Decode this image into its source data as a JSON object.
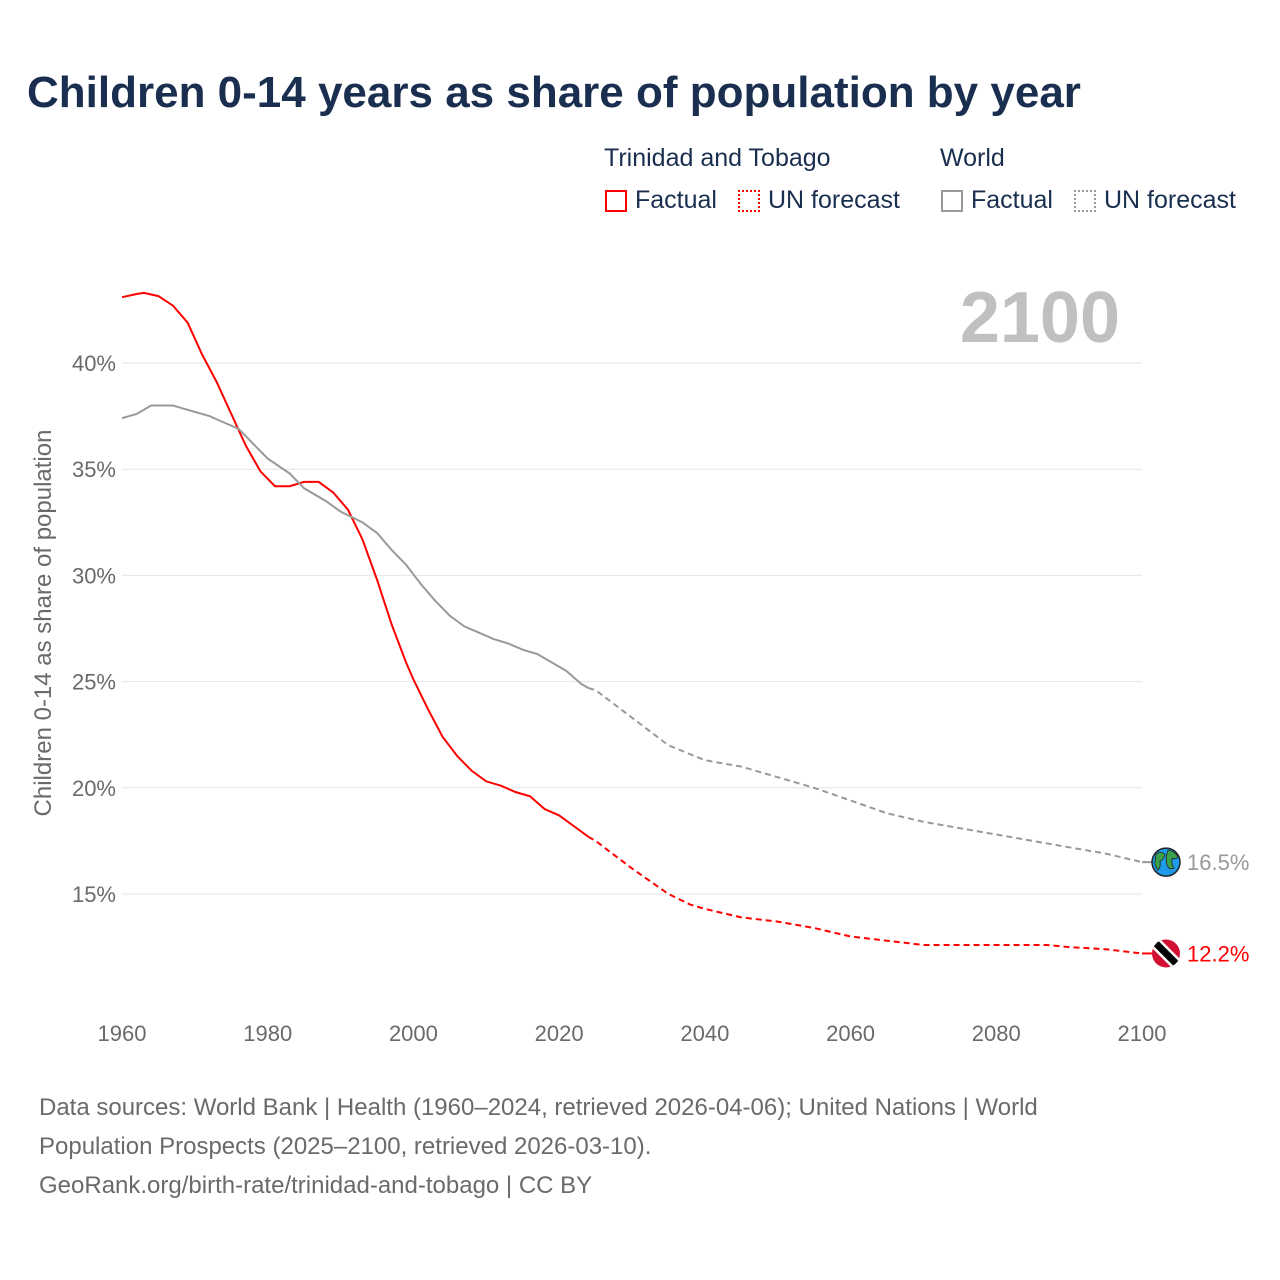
{
  "title": "Children 0-14 years as share of population by year",
  "legend": {
    "groups": [
      {
        "name": "Trinidad and Tobago",
        "factual": "Factual",
        "forecast": "UN forecast",
        "color": "#ff0000"
      },
      {
        "name": "World",
        "factual": "Factual",
        "forecast": "UN forecast",
        "color": "#999999"
      }
    ]
  },
  "year_label": "2100",
  "footer": {
    "line1": "Data sources: World Bank | Health (1960–2024, retrieved 2026-04-06); United Nations | World",
    "line2": "Population Prospects (2025–2100, retrieved 2026-03-10).",
    "line3": "GeoRank.org/birth-rate/trinidad-and-tobago | CC BY"
  },
  "chart_data": {
    "type": "line",
    "title": "Children 0-14 years as share of population by year",
    "xlabel": "",
    "ylabel": "Children 0-14 as share of population",
    "xlim": [
      1960,
      2100
    ],
    "ylim": [
      10,
      44
    ],
    "xticks": [
      1960,
      1980,
      2000,
      2020,
      2040,
      2060,
      2080,
      2100
    ],
    "yticks": [
      15,
      20,
      25,
      30,
      35,
      40
    ],
    "ytick_labels": [
      "15%",
      "20%",
      "25%",
      "30%",
      "35%",
      "40%"
    ],
    "grid": true,
    "series": [
      {
        "name": "Trinidad and Tobago",
        "color": "#ff0000",
        "end_label": "12.2%",
        "marker_icon": "trinidad-flag-icon",
        "factual": [
          [
            1960,
            43.1
          ],
          [
            1962,
            43.25
          ],
          [
            1963,
            43.3
          ],
          [
            1965,
            43.15
          ],
          [
            1967,
            42.7
          ],
          [
            1969,
            41.9
          ],
          [
            1971,
            40.4
          ],
          [
            1973,
            39.1
          ],
          [
            1975,
            37.6
          ],
          [
            1977,
            36.1
          ],
          [
            1979,
            34.9
          ],
          [
            1981,
            34.2
          ],
          [
            1983,
            34.2
          ],
          [
            1985,
            34.4
          ],
          [
            1987,
            34.4
          ],
          [
            1989,
            33.9
          ],
          [
            1991,
            33.1
          ],
          [
            1993,
            31.7
          ],
          [
            1995,
            29.8
          ],
          [
            1997,
            27.7
          ],
          [
            1999,
            25.9
          ],
          [
            2000,
            25.1
          ],
          [
            2002,
            23.7
          ],
          [
            2004,
            22.4
          ],
          [
            2006,
            21.5
          ],
          [
            2008,
            20.8
          ],
          [
            2010,
            20.3
          ],
          [
            2012,
            20.1
          ],
          [
            2014,
            19.8
          ],
          [
            2016,
            19.6
          ],
          [
            2018,
            19.0
          ],
          [
            2020,
            18.7
          ],
          [
            2022,
            18.2
          ],
          [
            2024,
            17.7
          ]
        ],
        "forecast": [
          [
            2024,
            17.7
          ],
          [
            2025,
            17.5
          ],
          [
            2030,
            16.2
          ],
          [
            2035,
            15.0
          ],
          [
            2038,
            14.5
          ],
          [
            2040,
            14.3
          ],
          [
            2045,
            13.9
          ],
          [
            2050,
            13.7
          ],
          [
            2055,
            13.4
          ],
          [
            2060,
            13.0
          ],
          [
            2065,
            12.8
          ],
          [
            2070,
            12.6
          ],
          [
            2080,
            12.6
          ],
          [
            2087,
            12.6
          ],
          [
            2090,
            12.5
          ],
          [
            2095,
            12.4
          ],
          [
            2100,
            12.2
          ]
        ]
      },
      {
        "name": "World",
        "color": "#999999",
        "end_label": "16.5%",
        "marker_icon": "globe-icon",
        "factual": [
          [
            1960,
            37.4
          ],
          [
            1962,
            37.6
          ],
          [
            1964,
            38.0
          ],
          [
            1967,
            38.0
          ],
          [
            1970,
            37.7
          ],
          [
            1972,
            37.5
          ],
          [
            1974,
            37.2
          ],
          [
            1976,
            36.9
          ],
          [
            1978,
            36.2
          ],
          [
            1980,
            35.5
          ],
          [
            1983,
            34.8
          ],
          [
            1985,
            34.1
          ],
          [
            1988,
            33.5
          ],
          [
            1990,
            33.0
          ],
          [
            1993,
            32.5
          ],
          [
            1995,
            32.0
          ],
          [
            1997,
            31.2
          ],
          [
            1999,
            30.5
          ],
          [
            2001,
            29.6
          ],
          [
            2003,
            28.8
          ],
          [
            2005,
            28.1
          ],
          [
            2007,
            27.6
          ],
          [
            2009,
            27.3
          ],
          [
            2011,
            27.0
          ],
          [
            2013,
            26.8
          ],
          [
            2015,
            26.5
          ],
          [
            2017,
            26.3
          ],
          [
            2019,
            25.9
          ],
          [
            2021,
            25.5
          ],
          [
            2023,
            24.9
          ],
          [
            2024,
            24.7
          ]
        ],
        "forecast": [
          [
            2024,
            24.7
          ],
          [
            2025,
            24.6
          ],
          [
            2030,
            23.3
          ],
          [
            2035,
            22.0
          ],
          [
            2040,
            21.3
          ],
          [
            2045,
            21.0
          ],
          [
            2050,
            20.5
          ],
          [
            2055,
            20.0
          ],
          [
            2060,
            19.4
          ],
          [
            2065,
            18.8
          ],
          [
            2070,
            18.4
          ],
          [
            2075,
            18.1
          ],
          [
            2080,
            17.8
          ],
          [
            2085,
            17.5
          ],
          [
            2090,
            17.2
          ],
          [
            2095,
            16.9
          ],
          [
            2100,
            16.5
          ]
        ]
      }
    ]
  }
}
